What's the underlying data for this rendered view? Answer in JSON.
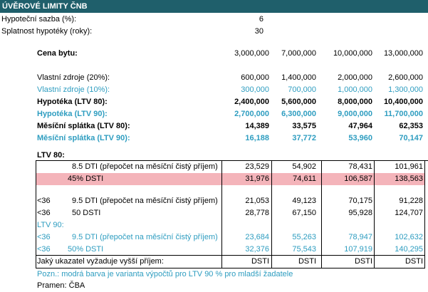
{
  "title": "ÚVĚROVÉ LIMITY ČNB",
  "params": {
    "rate_label": "Hypoteční sazba (%):",
    "rate_value": "6",
    "term_label": "Splatnost hypotéky (roky):",
    "term_value": "30"
  },
  "price": {
    "label": "Cena bytu:",
    "values": [
      "3,000,000",
      "7,000,000",
      "10,000,000",
      "13,000,000"
    ]
  },
  "rows": [
    {
      "label": "Vlastní zdroje (20%):",
      "values": [
        "600,000",
        "1,400,000",
        "2,000,000",
        "2,600,000"
      ]
    },
    {
      "label": "Vlastní zdroje (10%):",
      "values": [
        "300,000",
        "700,000",
        "1,000,000",
        "1,300,000"
      ]
    },
    {
      "label": "Hypotéka (LTV 80):",
      "values": [
        "2,400,000",
        "5,600,000",
        "8,000,000",
        "10,400,000"
      ]
    },
    {
      "label": "Hypotéka (LTV 90):",
      "values": [
        "2,700,000",
        "6,300,000",
        "9,000,000",
        "11,700,000"
      ]
    },
    {
      "label": "Měsíční splátka (LTV 80):",
      "values": [
        "14,389",
        "33,575",
        "47,964",
        "62,353"
      ]
    },
    {
      "label": "Měsíční splátka (LTV 90):",
      "values": [
        "16,188",
        "37,772",
        "53,960",
        "70,147"
      ]
    }
  ],
  "ltv80": {
    "heading": "LTV 80:",
    "rows": [
      {
        "prefix": "",
        "label": "8.5  DTI (přepočet na měsíční čistý příjem)",
        "values": [
          "23,529",
          "54,902",
          "78,431",
          "101,961"
        ]
      },
      {
        "prefix": "",
        "label": "45%  DSTI",
        "values": [
          "31,976",
          "74,611",
          "106,587",
          "138,563"
        ]
      },
      {
        "prefix": "<36",
        "label": "9.5  DTI (přepočet na měsíční čistý příjem)",
        "values": [
          "21,053",
          "49,123",
          "70,175",
          "91,228"
        ]
      },
      {
        "prefix": "<36",
        "label": "50  DSTI",
        "values": [
          "28,778",
          "67,150",
          "95,928",
          "124,707"
        ]
      }
    ]
  },
  "ltv90": {
    "heading": "LTV 90:",
    "rows": [
      {
        "prefix": "<36",
        "label": "9.5  DTI (přepočet na měsíční čistý příjem)",
        "values": [
          "23,684",
          "55,263",
          "78,947",
          "102,632"
        ]
      },
      {
        "prefix": "<36",
        "label": "50%  DSTI",
        "values": [
          "32,376",
          "75,543",
          "107,919",
          "140,295"
        ]
      }
    ]
  },
  "summary": {
    "label": "Jaký ukazatel vyžaduje vyšší příjem:",
    "values": [
      "DSTI",
      "DSTI",
      "DSTI",
      "DSTI"
    ]
  },
  "note": "Pozn.: modrá barva je varianta výpočtů pro LTV 90 % pro mladší žadatele",
  "source": "Pramen: ČBA",
  "colors": {
    "header_bg": "#1f5f6b",
    "blue": "#2e9dc0",
    "highlight": "#f4b4ba"
  }
}
